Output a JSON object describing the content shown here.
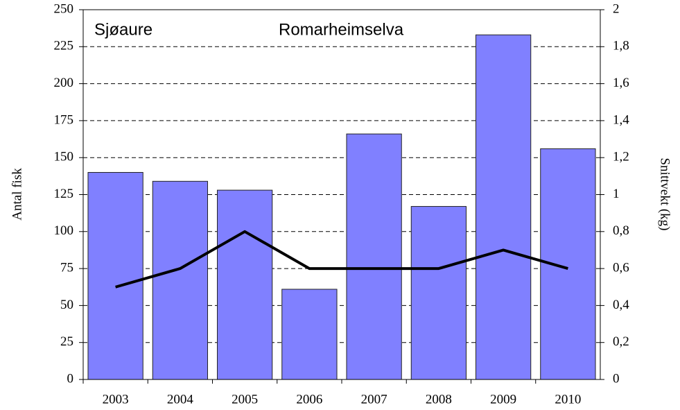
{
  "chart_data": {
    "type": "bar",
    "annotations": [
      "Sjøaure",
      "Romarheimselva"
    ],
    "y_label": "Antal fisk",
    "y2_label": "Snittvekt (kg)",
    "categories": [
      "2003",
      "2004",
      "2005",
      "2006",
      "2007",
      "2008",
      "2009",
      "2010"
    ],
    "series": [
      {
        "type": "bar",
        "color": "#8080ff",
        "values": [
          140,
          134,
          128,
          61,
          166,
          117,
          233,
          156
        ]
      },
      {
        "type": "line",
        "axis": "y2",
        "color": "#000000",
        "values": [
          0.5,
          0.6,
          0.8,
          0.6,
          0.6,
          0.6,
          0.7,
          0.6
        ]
      }
    ],
    "ylim": [
      0,
      250
    ],
    "yticks": [
      0,
      25,
      50,
      75,
      100,
      125,
      150,
      175,
      200,
      225,
      250
    ],
    "y2lim": [
      0,
      2
    ],
    "y2ticks": [
      0,
      {
        "value": 0.2,
        "label": "0,2"
      },
      {
        "value": 0.4,
        "label": "0,4"
      },
      {
        "value": 0.6,
        "label": "0,6"
      },
      {
        "value": 0.8,
        "label": "0,8"
      },
      1,
      {
        "value": 1.2,
        "label": "1,2"
      },
      {
        "value": 1.4,
        "label": "1,4"
      },
      {
        "value": 1.6,
        "label": "1,6"
      },
      {
        "value": 1.8,
        "label": "1,8"
      },
      2
    ],
    "grid": true
  }
}
